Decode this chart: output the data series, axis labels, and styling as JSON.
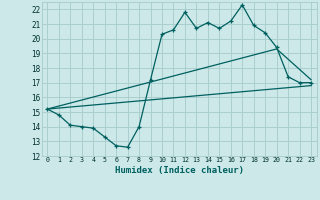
{
  "xlabel": "Humidex (Indice chaleur)",
  "ylabel": "",
  "xlim": [
    -0.5,
    23.5
  ],
  "ylim": [
    12,
    22.5
  ],
  "xticks": [
    0,
    1,
    2,
    3,
    4,
    5,
    6,
    7,
    8,
    9,
    10,
    11,
    12,
    13,
    14,
    15,
    16,
    17,
    18,
    19,
    20,
    21,
    22,
    23
  ],
  "yticks": [
    12,
    13,
    14,
    15,
    16,
    17,
    18,
    19,
    20,
    21,
    22
  ],
  "bg_color": "#cce8e8",
  "grid_color": "#aacece",
  "line_color": "#006060",
  "main_line_x": [
    0,
    1,
    2,
    3,
    4,
    5,
    6,
    7,
    8,
    9,
    10,
    11,
    12,
    13,
    14,
    15,
    16,
    17,
    18,
    19,
    20,
    21,
    22,
    23
  ],
  "main_line_y": [
    15.2,
    14.8,
    14.1,
    14.0,
    13.9,
    13.3,
    12.7,
    12.6,
    14.0,
    17.2,
    20.3,
    20.6,
    21.8,
    20.7,
    21.1,
    20.7,
    21.2,
    22.3,
    20.9,
    20.4,
    19.4,
    17.4,
    17.0,
    17.0
  ],
  "trend1_x": [
    0,
    23
  ],
  "trend1_y": [
    15.2,
    16.8
  ],
  "trend2_x": [
    0,
    20,
    23
  ],
  "trend2_y": [
    15.2,
    19.3,
    17.2
  ]
}
